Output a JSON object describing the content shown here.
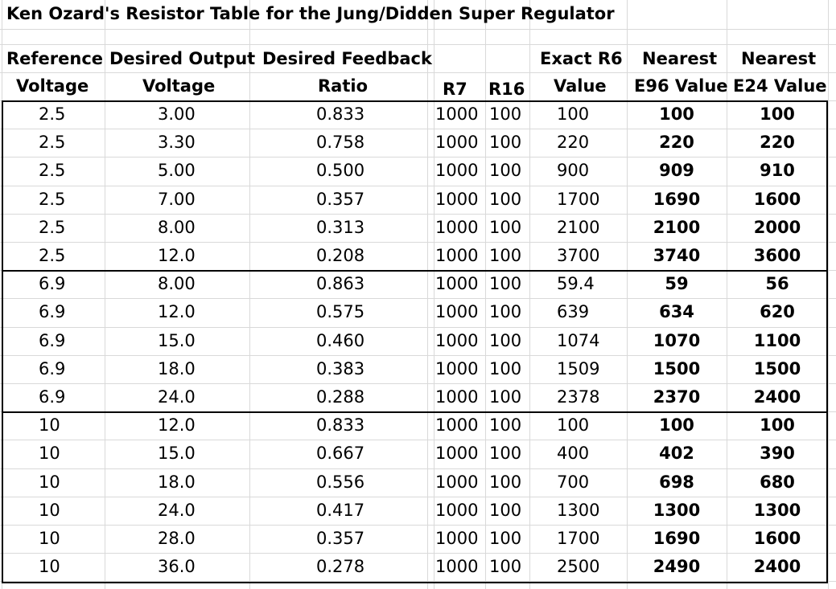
{
  "title": "Ken Ozard's Resistor Table for the Jung/Didden Super Regulator",
  "headers": {
    "ref_line1": "Reference",
    "ref_line2": "Voltage",
    "out_line1": "Desired Output",
    "out_line2": "Voltage",
    "fb_line1": "Desired Feedback",
    "fb_line2": "Ratio",
    "r7": "R7",
    "r16": "R16",
    "r6_line1": "Exact R6",
    "r6_line2": "Value",
    "e96_line1": "Nearest",
    "e96_line2": "E96 Value",
    "e24_line1": "Nearest",
    "e24_line2": "E24 Value"
  },
  "rows": [
    {
      "ref": "2.5",
      "out": "3.00",
      "ratio": "0.833",
      "r7": "1000",
      "r16": "100",
      "r6": "100",
      "e96": "100",
      "e24": "100"
    },
    {
      "ref": "2.5",
      "out": "3.30",
      "ratio": "0.758",
      "r7": "1000",
      "r16": "100",
      "r6": "220",
      "e96": "220",
      "e24": "220"
    },
    {
      "ref": "2.5",
      "out": "5.00",
      "ratio": "0.500",
      "r7": "1000",
      "r16": "100",
      "r6": "900",
      "e96": "909",
      "e24": "910"
    },
    {
      "ref": "2.5",
      "out": "7.00",
      "ratio": "0.357",
      "r7": "1000",
      "r16": "100",
      "r6": "1700",
      "e96": "1690",
      "e24": "1600"
    },
    {
      "ref": "2.5",
      "out": "8.00",
      "ratio": "0.313",
      "r7": "1000",
      "r16": "100",
      "r6": "2100",
      "e96": "2100",
      "e24": "2000"
    },
    {
      "ref": "2.5",
      "out": "12.0",
      "ratio": "0.208",
      "r7": "1000",
      "r16": "100",
      "r6": "3700",
      "e96": "3740",
      "e24": "3600"
    },
    {
      "ref": "6.9",
      "out": "8.00",
      "ratio": "0.863",
      "r7": "1000",
      "r16": "100",
      "r6": "59.4",
      "e96": "59",
      "e24": "56"
    },
    {
      "ref": "6.9",
      "out": "12.0",
      "ratio": "0.575",
      "r7": "1000",
      "r16": "100",
      "r6": "639",
      "e96": "634",
      "e24": "620"
    },
    {
      "ref": "6.9",
      "out": "15.0",
      "ratio": "0.460",
      "r7": "1000",
      "r16": "100",
      "r6": "1074",
      "e96": "1070",
      "e24": "1100"
    },
    {
      "ref": "6.9",
      "out": "18.0",
      "ratio": "0.383",
      "r7": "1000",
      "r16": "100",
      "r6": "1509",
      "e96": "1500",
      "e24": "1500"
    },
    {
      "ref": "6.9",
      "out": "24.0",
      "ratio": "0.288",
      "r7": "1000",
      "r16": "100",
      "r6": "2378",
      "e96": "2370",
      "e24": "2400"
    },
    {
      "ref": "10",
      "out": "12.0",
      "ratio": "0.833",
      "r7": "1000",
      "r16": "100",
      "r6": "100",
      "e96": "100",
      "e24": "100"
    },
    {
      "ref": "10",
      "out": "15.0",
      "ratio": "0.667",
      "r7": "1000",
      "r16": "100",
      "r6": "400",
      "e96": "402",
      "e24": "390"
    },
    {
      "ref": "10",
      "out": "18.0",
      "ratio": "0.556",
      "r7": "1000",
      "r16": "100",
      "r6": "700",
      "e96": "698",
      "e24": "680"
    },
    {
      "ref": "10",
      "out": "24.0",
      "ratio": "0.417",
      "r7": "1000",
      "r16": "100",
      "r6": "1300",
      "e96": "1300",
      "e24": "1300"
    },
    {
      "ref": "10",
      "out": "28.0",
      "ratio": "0.357",
      "r7": "1000",
      "r16": "100",
      "r6": "1700",
      "e96": "1690",
      "e24": "1600"
    },
    {
      "ref": "10",
      "out": "36.0",
      "ratio": "0.278",
      "r7": "1000",
      "r16": "100",
      "r6": "2500",
      "e96": "2490",
      "e24": "2400"
    }
  ]
}
